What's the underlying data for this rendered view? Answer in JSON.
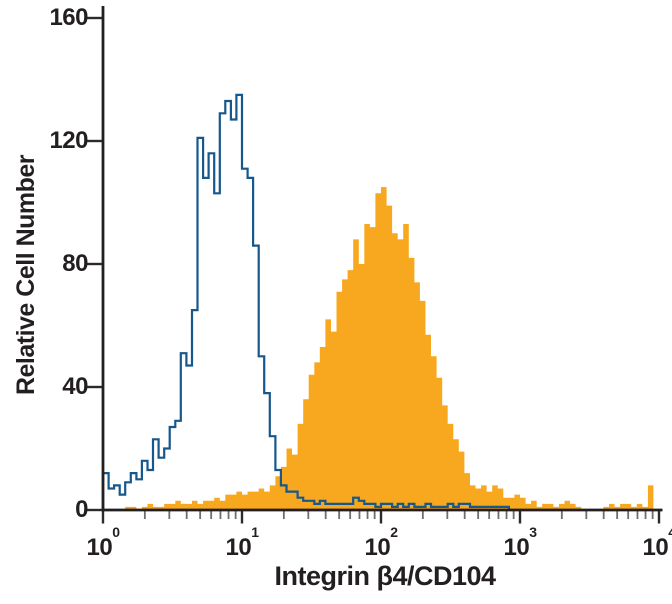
{
  "figure": {
    "background": "#ffffff",
    "text_color": "#231F20"
  },
  "chart_data": {
    "type": "histogram",
    "title": "",
    "xlabel": "Integrin β4/CD104",
    "ylabel": "Relative Cell Number",
    "xscale": "log",
    "xlim_log10": [
      0,
      4
    ],
    "ylim": [
      0,
      165
    ],
    "grid": false,
    "legend": "none",
    "y_ticks": [
      160,
      120,
      80,
      40,
      0
    ],
    "x_ticks": [
      {
        "base": "10",
        "exp": "0"
      },
      {
        "base": "10",
        "exp": "1"
      },
      {
        "base": "10",
        "exp": "2"
      },
      {
        "base": "10",
        "exp": "3"
      },
      {
        "base": "10",
        "exp": "4"
      }
    ],
    "x_minor_ticks_per_decade": [
      2,
      3,
      4,
      5,
      6,
      7,
      8,
      9
    ],
    "axis_color": "#231F20",
    "major_tick_color": "#2B2B2B",
    "minor_tick_color": "#6D6E71",
    "bin_width_log10": 0.04,
    "series": [
      {
        "name": "filled-orange-histogram",
        "style": "filled",
        "color": "#F7A81E",
        "peak_value": 105,
        "peak_x_log10": 2.0,
        "values": [
          0,
          0,
          0,
          0,
          1,
          1,
          0,
          1,
          2,
          1,
          1,
          2,
          2,
          3,
          2,
          2,
          3,
          2,
          3,
          3,
          4,
          3,
          5,
          5,
          6,
          5,
          6,
          6,
          7,
          6,
          8,
          11,
          14,
          20,
          18,
          28,
          36,
          44,
          48,
          53,
          62,
          58,
          71,
          75,
          78,
          88,
          80,
          93,
          92,
          103,
          105,
          99,
          90,
          88,
          93,
          82,
          74,
          68,
          57,
          50,
          43,
          34,
          28,
          23,
          19,
          12,
          8,
          7,
          8,
          6,
          8,
          7,
          4,
          4,
          5,
          4,
          2,
          3,
          1,
          2,
          2,
          1,
          2,
          3,
          2,
          1,
          0,
          0,
          0,
          0,
          1,
          2,
          1,
          2,
          2,
          1,
          2,
          1,
          8,
          0
        ]
      },
      {
        "name": "open-blue-histogram",
        "style": "open-outline",
        "color": "#16578C",
        "peak_value": 135,
        "peak_x_log10": 0.95,
        "values": [
          12,
          7,
          8,
          5,
          9,
          12,
          10,
          16,
          13,
          23,
          17,
          20,
          27,
          29,
          51,
          47,
          65,
          121,
          108,
          116,
          103,
          129,
          133,
          127,
          135,
          111,
          108,
          86,
          50,
          38,
          24,
          13,
          8,
          6,
          6,
          4,
          3,
          3,
          2,
          3,
          2,
          2,
          2,
          2,
          2,
          4,
          3,
          2,
          2,
          1,
          2,
          2,
          1,
          2,
          1,
          2,
          1,
          1,
          2,
          1,
          1,
          1,
          2,
          1,
          2,
          2,
          1,
          1,
          1,
          1,
          1,
          1,
          1,
          0,
          0,
          0,
          0,
          0,
          0,
          0,
          0,
          0,
          0,
          0,
          0,
          0,
          0,
          0,
          0,
          0,
          0,
          0,
          0,
          0,
          0,
          0,
          0,
          0,
          0,
          0
        ]
      }
    ]
  }
}
